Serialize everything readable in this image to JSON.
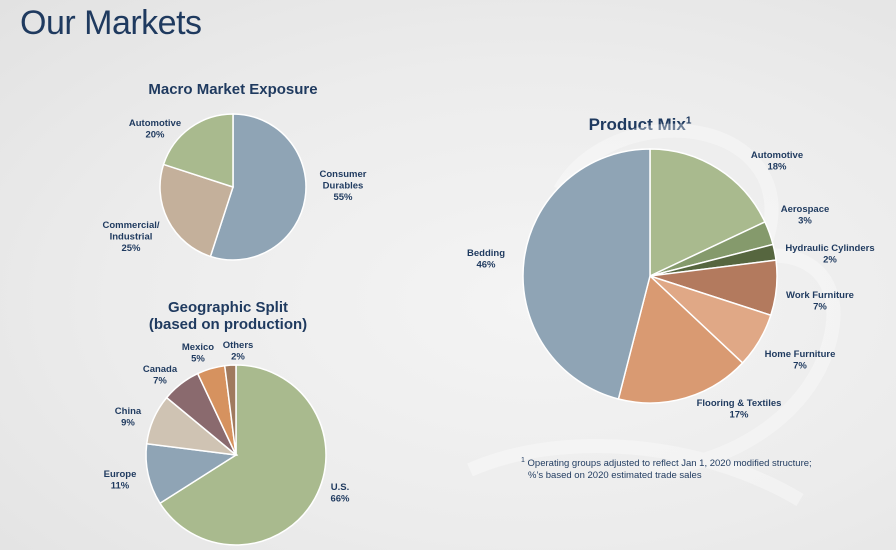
{
  "page": {
    "title": "Our Markets"
  },
  "colors": {
    "slate": "#8fa4b5",
    "sage": "#a9ba8e",
    "tan": "#c4b09b",
    "green_mid": "#859a6c",
    "green_dark": "#56663f",
    "brick": "#b37a5e",
    "peach": "#d9a07c",
    "orange": "#d99a72",
    "plum": "#8a6a6e",
    "beige": "#cfc3b3",
    "orange_small": "#d6925f",
    "brown": "#a07a5e"
  },
  "chart_data": [
    {
      "type": "pie",
      "title": "Macro Market Exposure",
      "slices": [
        {
          "label": "Consumer Durables",
          "label_lines": [
            "Consumer",
            "Durables"
          ],
          "value": 55,
          "display": "55%",
          "color": "#8fa4b5"
        },
        {
          "label": "Commercial/ Industrial",
          "label_lines": [
            "Commercial/",
            "Industrial"
          ],
          "value": 25,
          "display": "25%",
          "color": "#c4b09b"
        },
        {
          "label": "Automotive",
          "label_lines": [
            "Automotive"
          ],
          "value": 20,
          "display": "20%",
          "color": "#a9ba8e"
        }
      ]
    },
    {
      "type": "pie",
      "title": "Geographic Split",
      "subtitle": "(based on production)",
      "slices": [
        {
          "label": "U.S.",
          "label_lines": [
            "U.S."
          ],
          "value": 66,
          "display": "66%",
          "color": "#a9ba8e"
        },
        {
          "label": "Europe",
          "label_lines": [
            "Europe"
          ],
          "value": 11,
          "display": "11%",
          "color": "#8fa4b5"
        },
        {
          "label": "China",
          "label_lines": [
            "China"
          ],
          "value": 9,
          "display": "9%",
          "color": "#cfc3b3"
        },
        {
          "label": "Canada",
          "label_lines": [
            "Canada"
          ],
          "value": 7,
          "display": "7%",
          "color": "#8a6a6e"
        },
        {
          "label": "Mexico",
          "label_lines": [
            "Mexico"
          ],
          "value": 5,
          "display": "5%",
          "color": "#d6925f"
        },
        {
          "label": "Others",
          "label_lines": [
            "Others"
          ],
          "value": 2,
          "display": "2%",
          "color": "#a07a5e"
        }
      ]
    },
    {
      "type": "pie",
      "title": "Product Mix",
      "title_footnote": "1",
      "slices": [
        {
          "label": "Automotive",
          "label_lines": [
            "Automotive"
          ],
          "value": 18,
          "display": "18%",
          "color": "#a9ba8e"
        },
        {
          "label": "Aerospace",
          "label_lines": [
            "Aerospace"
          ],
          "value": 3,
          "display": "3%",
          "color": "#859a6c"
        },
        {
          "label": "Hydraulic Cylinders",
          "label_lines": [
            "Hydraulic Cylinders"
          ],
          "value": 2,
          "display": "2%",
          "color": "#56663f"
        },
        {
          "label": "Work Furniture",
          "label_lines": [
            "Work Furniture"
          ],
          "value": 7,
          "display": "7%",
          "color": "#b37a5e"
        },
        {
          "label": "Home Furniture",
          "label_lines": [
            "Home Furniture"
          ],
          "value": 7,
          "display": "7%",
          "color": "#e0a886"
        },
        {
          "label": "Flooring & Textiles",
          "label_lines": [
            "Flooring & Textiles"
          ],
          "value": 17,
          "display": "17%",
          "color": "#d99a72"
        },
        {
          "label": "Bedding",
          "label_lines": [
            "Bedding"
          ],
          "value": 46,
          "display": "46%",
          "color": "#8fa4b5"
        }
      ]
    }
  ],
  "footnote": {
    "marker": "1",
    "line1": "Operating groups adjusted to reflect Jan 1, 2020 modified structure;",
    "line2": "%’s based on 2020 estimated trade sales"
  }
}
